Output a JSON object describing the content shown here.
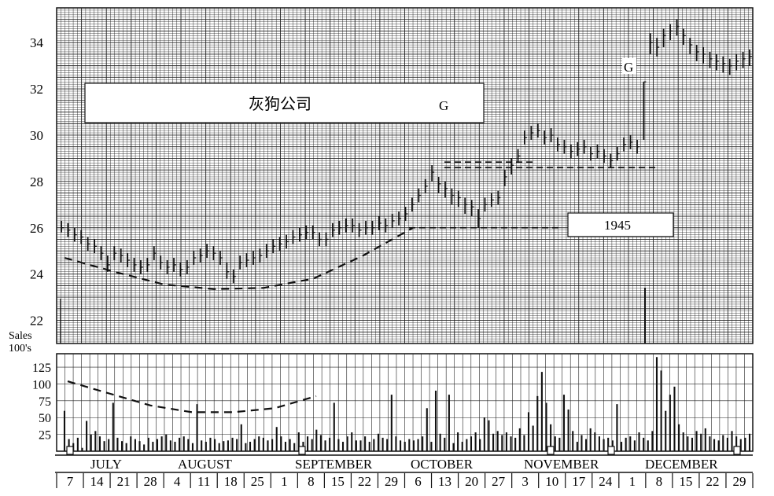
{
  "chart_data": {
    "type": "bar",
    "title": "灰狗公司",
    "annotations": {
      "box_letter": "G",
      "top_letter": "G",
      "year": "1945"
    },
    "price_axis": {
      "ticks": [
        22,
        24,
        26,
        28,
        30,
        32,
        34
      ],
      "ylim": [
        21,
        35.5
      ]
    },
    "volume_axis": {
      "label_line1": "Sales",
      "label_line2": "100's",
      "ticks": [
        25,
        50,
        75,
        100,
        125
      ],
      "ylim": [
        0,
        145
      ]
    },
    "months": [
      "JULY",
      "AUGUST",
      "SEPTEMBER",
      "OCTOBER",
      "NOVEMBER",
      "DECEMBER"
    ],
    "weeks": [
      "7",
      "14",
      "21",
      "28",
      "4",
      "11",
      "18",
      "25",
      "1",
      "8",
      "15",
      "22",
      "29",
      "6",
      "13",
      "20",
      "27",
      "3",
      "10",
      "17",
      "24",
      "1",
      "8",
      "15",
      "22",
      "29"
    ],
    "price_series": {
      "name": "",
      "close": [
        26.0,
        25.9,
        25.7,
        25.6,
        25.3,
        25.2,
        24.9,
        24.4,
        24.9,
        24.8,
        24.6,
        24.4,
        24.3,
        24.4,
        24.9,
        24.5,
        24.3,
        24.4,
        24.2,
        24.3,
        24.7,
        24.8,
        25.0,
        24.9,
        24.7,
        24.1,
        23.9,
        24.5,
        24.6,
        24.7,
        24.8,
        25.0,
        25.2,
        25.3,
        25.4,
        25.6,
        25.7,
        25.8,
        25.8,
        25.5,
        25.5,
        25.9,
        26.0,
        26.1,
        26.1,
        25.9,
        26.0,
        26.0,
        26.2,
        26.1,
        26.3,
        26.4,
        26.6,
        27.0,
        27.4,
        27.8,
        28.4,
        27.9,
        27.7,
        27.4,
        27.3,
        27.0,
        26.9,
        26.4,
        27.0,
        27.2,
        27.3,
        28.2,
        28.7,
        29.1,
        29.9,
        30.1,
        30.2,
        29.9,
        30.0,
        29.6,
        29.5,
        29.3,
        29.4,
        29.5,
        29.2,
        29.3,
        29.1,
        28.9,
        29.2,
        29.6,
        29.7,
        29.5,
        32.3,
        34.0,
        33.8,
        34.3,
        34.5,
        34.7,
        34.3,
        33.9,
        33.6,
        33.5,
        33.3,
        33.2,
        33.1,
        33.0,
        33.2,
        33.3,
        33.4
      ],
      "low": [
        25.8,
        25.6,
        25.4,
        25.3,
        25.0,
        24.9,
        24.6,
        24.1,
        24.6,
        24.5,
        24.3,
        24.1,
        24.0,
        24.1,
        24.6,
        24.2,
        24.0,
        24.1,
        23.9,
        24.0,
        24.4,
        24.5,
        24.7,
        24.6,
        24.4,
        23.8,
        23.6,
        24.2,
        24.3,
        24.4,
        24.5,
        24.7,
        24.9,
        25.0,
        25.1,
        25.3,
        25.4,
        25.5,
        25.5,
        25.2,
        25.2,
        25.6,
        25.7,
        25.8,
        25.8,
        25.6,
        25.7,
        25.7,
        25.9,
        25.8,
        26.0,
        26.1,
        26.3,
        26.7,
        27.1,
        27.5,
        28.0,
        27.5,
        27.3,
        27.0,
        26.9,
        26.6,
        26.5,
        26.0,
        26.7,
        26.9,
        27.0,
        27.8,
        28.3,
        28.8,
        29.6,
        29.8,
        29.9,
        29.6,
        29.7,
        29.3,
        29.2,
        29.0,
        29.1,
        29.2,
        28.9,
        29.0,
        28.8,
        28.6,
        28.9,
        29.3,
        29.4,
        29.2,
        29.8,
        33.5,
        33.4,
        33.8,
        34.1,
        34.3,
        33.9,
        33.5,
        33.2,
        33.1,
        32.9,
        32.8,
        32.7,
        32.6,
        32.8,
        32.9,
        33.0
      ],
      "high": [
        26.3,
        26.2,
        26.0,
        25.9,
        25.6,
        25.5,
        25.2,
        24.8,
        25.2,
        25.1,
        24.9,
        24.7,
        24.6,
        24.7,
        25.2,
        24.8,
        24.6,
        24.7,
        24.5,
        24.6,
        25.0,
        25.1,
        25.3,
        25.2,
        25.0,
        24.5,
        24.2,
        24.8,
        24.9,
        25.0,
        25.1,
        25.3,
        25.5,
        25.6,
        25.7,
        25.9,
        26.0,
        26.1,
        26.1,
        25.8,
        25.8,
        26.2,
        26.3,
        26.4,
        26.4,
        26.2,
        26.3,
        26.3,
        26.5,
        26.4,
        26.6,
        26.7,
        26.9,
        27.3,
        27.7,
        28.1,
        28.7,
        28.2,
        28.0,
        27.7,
        27.6,
        27.3,
        27.2,
        26.8,
        27.3,
        27.5,
        27.6,
        28.5,
        29.0,
        29.4,
        30.2,
        30.4,
        30.5,
        30.2,
        30.3,
        29.9,
        29.8,
        29.6,
        29.7,
        29.8,
        29.5,
        29.6,
        29.4,
        29.2,
        29.5,
        29.9,
        30.0,
        29.8,
        32.3,
        34.4,
        34.2,
        34.6,
        34.8,
        35.0,
        34.6,
        34.2,
        33.9,
        33.8,
        33.6,
        33.5,
        33.4,
        33.3,
        33.5,
        33.6,
        33.7
      ]
    },
    "volume_series": {
      "name": "",
      "values": [
        60,
        18,
        12,
        20,
        5,
        45,
        25,
        30,
        22,
        15,
        18,
        72,
        20,
        15,
        12,
        22,
        18,
        15,
        10,
        20,
        14,
        18,
        22,
        25,
        16,
        14,
        20,
        22,
        18,
        12,
        70,
        16,
        14,
        20,
        18,
        12,
        15,
        16,
        20,
        18,
        40,
        12,
        14,
        18,
        22,
        20,
        16,
        18,
        36,
        22,
        14,
        18,
        12,
        28,
        14,
        22,
        18,
        32,
        24,
        16,
        20,
        72,
        18,
        14,
        22,
        28,
        16,
        16,
        22,
        14,
        18,
        26,
        20,
        18,
        84,
        22,
        16,
        14,
        18,
        16,
        18,
        22,
        64,
        14,
        90,
        26,
        20,
        84,
        12,
        28,
        14,
        18,
        22,
        28,
        18,
        50,
        46,
        26,
        30,
        24,
        28,
        22,
        20,
        34,
        24,
        58,
        38,
        82,
        118,
        72,
        40,
        22,
        20,
        84,
        62,
        30,
        14,
        24,
        18,
        34,
        28,
        22,
        18,
        20,
        16,
        70,
        14,
        20,
        22,
        16,
        28,
        20,
        16,
        30,
        140,
        120,
        60,
        84,
        96,
        40,
        28,
        22,
        20,
        30,
        26,
        34,
        22,
        18,
        16,
        24,
        20,
        30,
        22,
        18,
        20,
        26
      ]
    },
    "reference_lines": {
      "price_trough_curve": [
        24.7,
        24.1,
        23.55,
        23.35,
        23.4,
        23.8,
        24.8,
        26.0
      ],
      "volume_trough_curve": [
        104,
        86,
        68,
        58,
        58,
        64,
        82
      ],
      "resistance_1": 26.0,
      "resistance_2": 28.6
    }
  }
}
